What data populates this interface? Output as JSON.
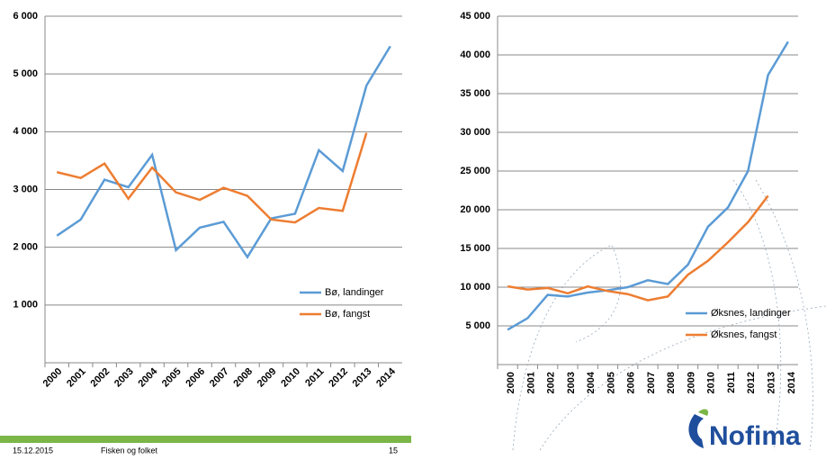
{
  "chart_data": [
    {
      "type": "line",
      "categories": [
        "2000",
        "2001",
        "2002",
        "2003",
        "2004",
        "2005",
        "2006",
        "2007",
        "2008",
        "2009",
        "2010",
        "2011",
        "2012",
        "2013",
        "2014"
      ],
      "series": [
        {
          "name": "Bø, landinger",
          "color": "#5b9bd5",
          "values": [
            2200,
            2480,
            3170,
            3040,
            3600,
            1950,
            2340,
            2440,
            1830,
            2500,
            2580,
            3680,
            3320,
            4800,
            5480
          ]
        },
        {
          "name": "Bø, fangst",
          "color": "#ed7d31",
          "values": [
            3300,
            3200,
            3450,
            2840,
            3380,
            2950,
            2820,
            3030,
            2890,
            2480,
            2430,
            2680,
            2630,
            3980,
            null
          ]
        }
      ],
      "ylim": [
        0,
        6000
      ],
      "yticks": [
        {
          "value": 1000,
          "label": "1 000"
        },
        {
          "value": 2000,
          "label": "2 000"
        },
        {
          "value": 3000,
          "label": "3 000"
        },
        {
          "value": 4000,
          "label": "4 000"
        },
        {
          "value": 5000,
          "label": "5 000"
        },
        {
          "value": 6000,
          "label": "6 000"
        }
      ],
      "grid": true
    },
    {
      "type": "line",
      "categories": [
        "2000",
        "2001",
        "2002",
        "2003",
        "2004",
        "2005",
        "2006",
        "2007",
        "2008",
        "2009",
        "2010",
        "2011",
        "2012",
        "2013",
        "2014"
      ],
      "series": [
        {
          "name": "Øksnes, landinger",
          "color": "#5b9bd5",
          "values": [
            4500,
            6000,
            9000,
            8800,
            9300,
            9600,
            10000,
            10900,
            10400,
            12900,
            17800,
            20300,
            25000,
            37400,
            41700
          ]
        },
        {
          "name": "Øksnes, fangst",
          "color": "#ed7d31",
          "values": [
            10100,
            9700,
            9900,
            9200,
            10100,
            9500,
            9100,
            8300,
            8800,
            11600,
            13400,
            15800,
            18400,
            21800,
            null
          ]
        }
      ],
      "ylim": [
        0,
        45000
      ],
      "yticks": [
        {
          "value": 5000,
          "label": "5 000"
        },
        {
          "value": 10000,
          "label": "10 000"
        },
        {
          "value": 15000,
          "label": "15 000"
        },
        {
          "value": 20000,
          "label": "20 000"
        },
        {
          "value": 25000,
          "label": "25 000"
        },
        {
          "value": 30000,
          "label": "30 000"
        },
        {
          "value": 35000,
          "label": "35 000"
        },
        {
          "value": 40000,
          "label": "40 000"
        },
        {
          "value": 45000,
          "label": "45 000"
        }
      ],
      "grid": true
    }
  ],
  "footer": {
    "date": "15.12.2015",
    "title": "Fisken og folket",
    "page": "15",
    "logo": "Nofima"
  }
}
